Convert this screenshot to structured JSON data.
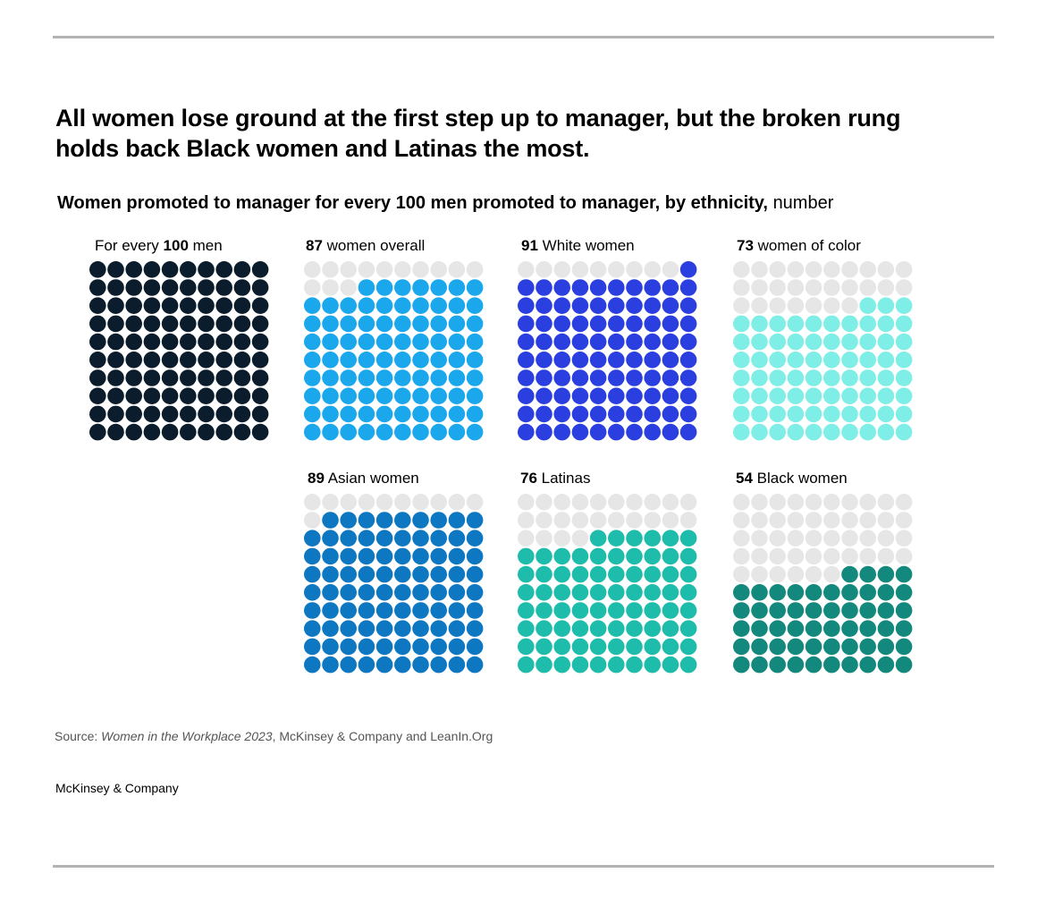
{
  "title": "All women lose ground at the first step up to manager, but the broken rung holds back Black women and Latinas the most.",
  "subtitle": {
    "bold": "Women promoted to manager for every 100 men promoted to manager, by ethnicity,",
    "regular": "number"
  },
  "source": {
    "prefix": "Source: ",
    "italic": "Women in the Workplace 2023",
    "suffix": ", McKinsey & Company and LeanIn.Org"
  },
  "brand": "McKinsey & Company",
  "colors": {
    "empty": "#e6e6e6"
  },
  "chart_data": {
    "type": "waffle",
    "total": 100,
    "grid": "10x10",
    "series": [
      {
        "label_prefix": "For every ",
        "value_text": "100",
        "label_suffix": " men",
        "value": 100,
        "color": "#0b1c2c"
      },
      {
        "label_prefix": "",
        "value_text": "87",
        "label_suffix": " women overall",
        "value": 87,
        "color": "#1aa7ec"
      },
      {
        "label_prefix": "",
        "value_text": "91",
        "label_suffix": " White women",
        "value": 91,
        "color": "#2b3fe0"
      },
      {
        "label_prefix": "",
        "value_text": "73",
        "label_suffix": " women of color",
        "value": 73,
        "color": "#7eeee6"
      },
      {
        "label_prefix": "",
        "value_text": "89",
        "label_suffix": " Asian women",
        "value": 89,
        "color": "#0d77c2"
      },
      {
        "label_prefix": "",
        "value_text": "76",
        "label_suffix": " Latinas",
        "value": 76,
        "color": "#1ebcab"
      },
      {
        "label_prefix": "",
        "value_text": "54",
        "label_suffix": " Black women",
        "value": 54,
        "color": "#12897c"
      }
    ]
  }
}
